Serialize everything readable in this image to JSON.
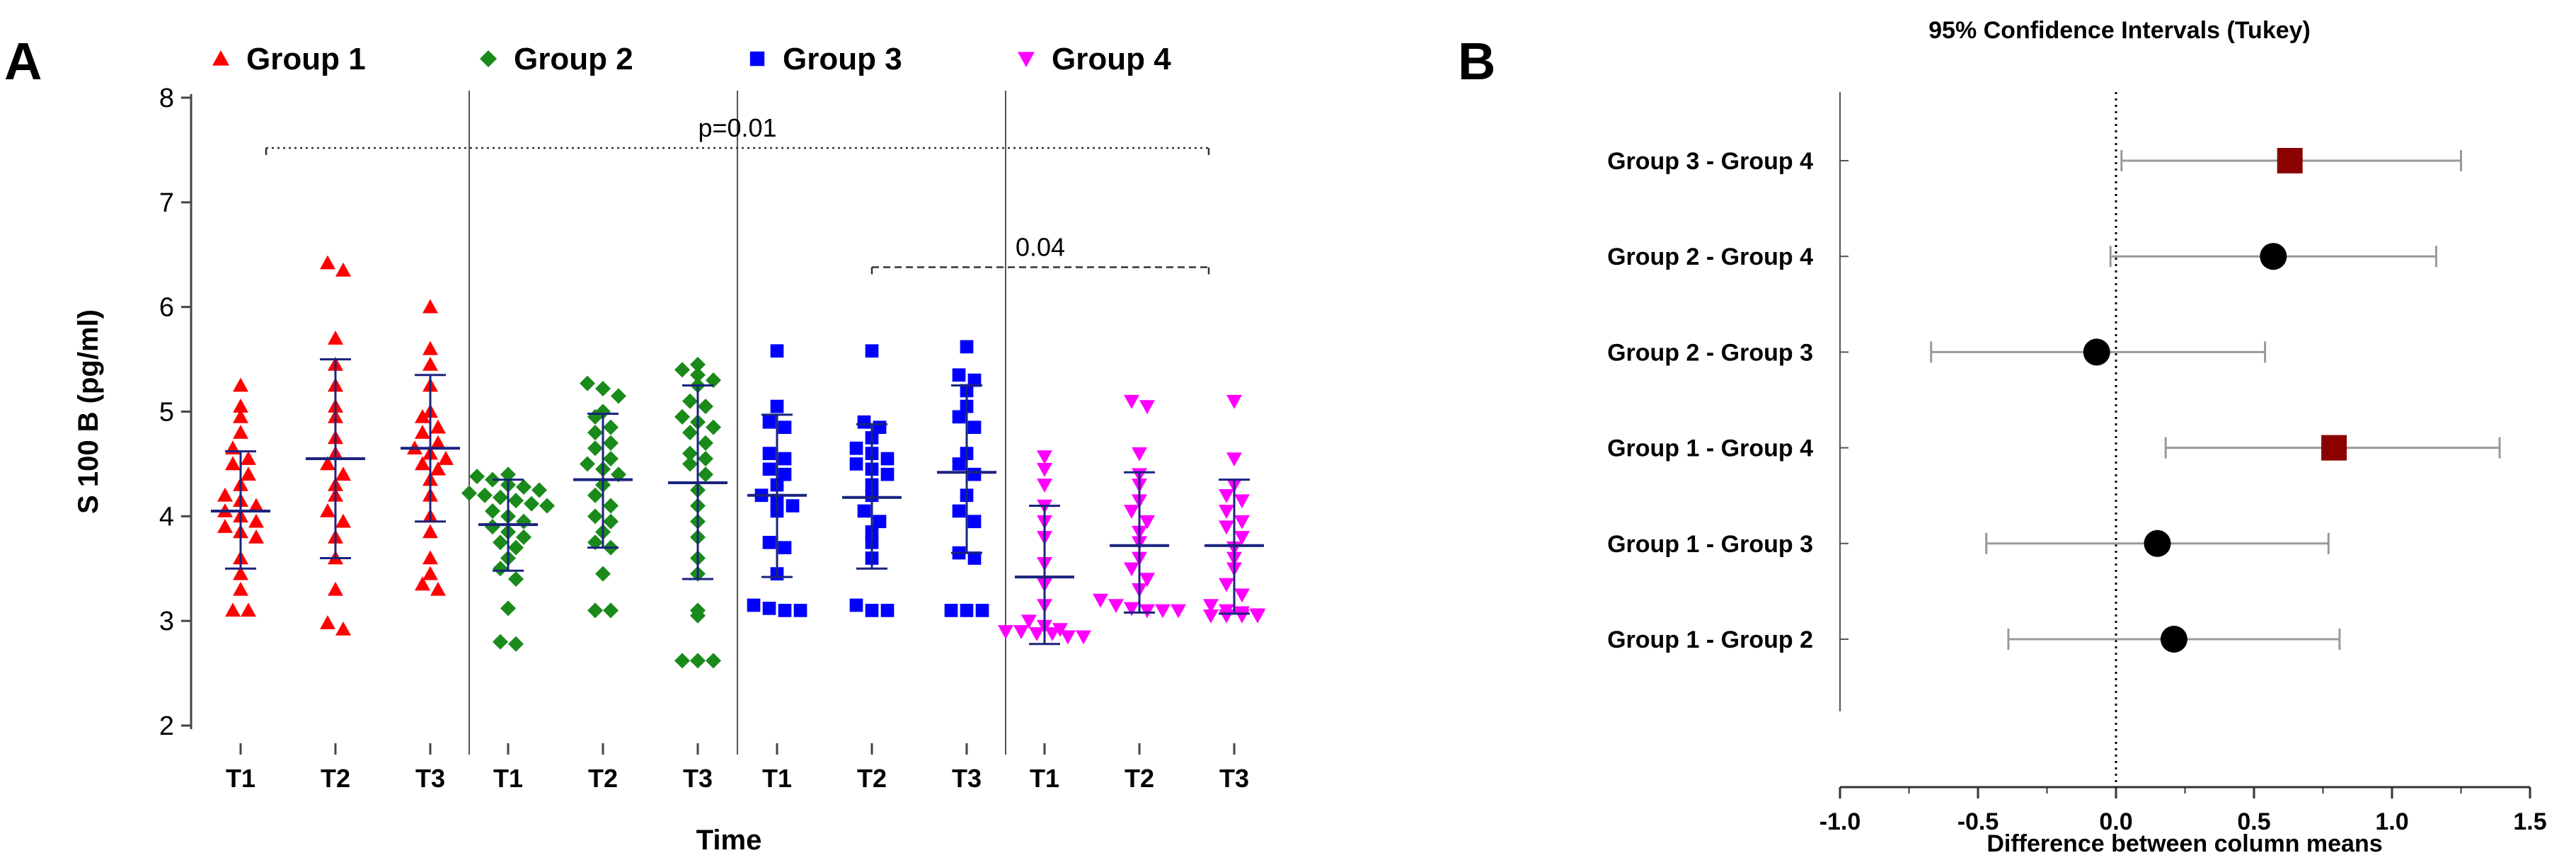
{
  "panel_labels": {
    "a": "A",
    "b": "B"
  },
  "colors": {
    "group1": "#ff0000",
    "group2": "#1a8a1a",
    "group3": "#0000ff",
    "group4": "#ff00ff",
    "errorbar": "#1a237e",
    "ci_highlight": "#8b0000",
    "ci_normal": "#000000",
    "ci_whisker": "#999999"
  },
  "chart_data": [
    {
      "type": "scatter",
      "ylabel": "S 100 B (pg/ml)",
      "xlabel": "Time",
      "ylim": [
        2,
        8
      ],
      "yticks": [
        2,
        3,
        4,
        5,
        6,
        7,
        8
      ],
      "legend_position": "top",
      "groups": [
        {
          "name": "Group 1",
          "marker": "triangle-up",
          "color_key": "group1",
          "timepoints": [
            {
              "label": "T1",
              "mean": 4.05,
              "sd_low": 3.5,
              "sd_high": 4.62,
              "values": [
                5.25,
                5.05,
                4.95,
                4.8,
                4.65,
                4.55,
                4.5,
                4.4,
                4.3,
                4.2,
                4.15,
                4.1,
                4.05,
                4.0,
                3.95,
                3.9,
                3.85,
                3.8,
                3.6,
                3.45,
                3.3,
                3.1,
                3.1
              ]
            },
            {
              "label": "T2",
              "mean": 4.55,
              "sd_low": 3.6,
              "sd_high": 5.5,
              "values": [
                6.42,
                6.35,
                5.7,
                5.45,
                5.25,
                5.05,
                4.95,
                4.75,
                4.6,
                4.5,
                4.4,
                4.3,
                4.2,
                4.05,
                3.95,
                3.8,
                3.6,
                3.3,
                2.98,
                2.92
              ]
            },
            {
              "label": "T3",
              "mean": 4.65,
              "sd_low": 3.95,
              "sd_high": 5.35,
              "values": [
                6.0,
                5.6,
                5.45,
                5.25,
                5.0,
                4.95,
                4.85,
                4.8,
                4.7,
                4.65,
                4.6,
                4.55,
                4.5,
                4.45,
                4.35,
                4.2,
                4.0,
                3.85,
                3.6,
                3.45,
                3.35,
                3.3
              ]
            }
          ]
        },
        {
          "name": "Group 2",
          "marker": "diamond",
          "color_key": "group2",
          "timepoints": [
            {
              "label": "T1",
              "mean": 3.92,
              "sd_low": 3.48,
              "sd_high": 4.35,
              "values": [
                4.4,
                4.38,
                4.35,
                4.3,
                4.28,
                4.25,
                4.22,
                4.2,
                4.18,
                4.15,
                4.12,
                4.1,
                4.05,
                4.0,
                3.95,
                3.9,
                3.85,
                3.8,
                3.75,
                3.7,
                3.6,
                3.5,
                3.4,
                3.12,
                2.8,
                2.78
              ]
            },
            {
              "label": "T2",
              "mean": 4.35,
              "sd_low": 3.7,
              "sd_high": 4.98,
              "values": [
                5.27,
                5.22,
                5.15,
                5.0,
                4.95,
                4.85,
                4.8,
                4.7,
                4.65,
                4.55,
                4.5,
                4.45,
                4.4,
                4.3,
                4.2,
                4.1,
                4.0,
                3.95,
                3.85,
                3.75,
                3.7,
                3.45,
                3.1,
                3.1
              ]
            },
            {
              "label": "T3",
              "mean": 4.32,
              "sd_low": 3.4,
              "sd_high": 5.25,
              "values": [
                5.45,
                5.4,
                5.35,
                5.3,
                5.25,
                5.1,
                5.05,
                4.95,
                4.9,
                4.85,
                4.8,
                4.7,
                4.6,
                4.55,
                4.5,
                4.4,
                4.25,
                4.1,
                3.95,
                3.8,
                3.6,
                3.45,
                3.1,
                3.05,
                2.62,
                2.62,
                2.62
              ]
            }
          ]
        },
        {
          "name": "Group 3",
          "marker": "square",
          "color_key": "group3",
          "timepoints": [
            {
              "label": "T1",
              "mean": 4.2,
              "sd_low": 3.42,
              "sd_high": 4.97,
              "values": [
                5.58,
                5.05,
                4.9,
                4.85,
                4.6,
                4.55,
                4.45,
                4.4,
                4.3,
                4.2,
                4.15,
                4.1,
                4.05,
                3.75,
                3.7,
                3.45,
                3.15,
                3.12,
                3.1,
                3.1
              ]
            },
            {
              "label": "T2",
              "mean": 4.18,
              "sd_low": 3.5,
              "sd_high": 4.88,
              "values": [
                5.58,
                4.9,
                4.85,
                4.75,
                4.65,
                4.6,
                4.55,
                4.5,
                4.45,
                4.4,
                4.3,
                4.2,
                4.05,
                3.95,
                3.85,
                3.75,
                3.6,
                3.15,
                3.1,
                3.1
              ]
            },
            {
              "label": "T3",
              "mean": 4.42,
              "sd_low": 3.65,
              "sd_high": 5.25,
              "values": [
                5.62,
                5.35,
                5.3,
                5.2,
                5.05,
                4.95,
                4.85,
                4.6,
                4.5,
                4.4,
                4.2,
                4.05,
                3.95,
                3.65,
                3.6,
                3.1,
                3.1,
                3.1
              ]
            }
          ]
        },
        {
          "name": "Group 4",
          "marker": "triangle-down",
          "color_key": "group4",
          "timepoints": [
            {
              "label": "T1",
              "mean": 3.42,
              "sd_low": 2.78,
              "sd_high": 4.1,
              "values": [
                4.57,
                4.45,
                4.3,
                4.1,
                3.95,
                3.8,
                3.55,
                3.35,
                3.15,
                3.0,
                2.95,
                2.92,
                2.9,
                2.9,
                2.88,
                2.88,
                2.85,
                2.85
              ]
            },
            {
              "label": "T2",
              "mean": 3.72,
              "sd_low": 3.08,
              "sd_high": 4.42,
              "values": [
                5.1,
                5.05,
                4.6,
                4.4,
                4.3,
                4.15,
                4.05,
                3.95,
                3.85,
                3.75,
                3.6,
                3.5,
                3.4,
                3.3,
                3.2,
                3.15,
                3.12,
                3.1,
                3.1,
                3.1
              ]
            },
            {
              "label": "T3",
              "mean": 3.72,
              "sd_low": 3.07,
              "sd_high": 4.35,
              "values": [
                5.1,
                4.55,
                4.3,
                4.2,
                4.15,
                4.05,
                3.95,
                3.9,
                3.8,
                3.7,
                3.6,
                3.5,
                3.35,
                3.25,
                3.15,
                3.1,
                3.08,
                3.06,
                3.05,
                3.05,
                3.05,
                3.05
              ]
            }
          ]
        }
      ],
      "annotations": [
        {
          "text": "p=0.01",
          "y": 7.52,
          "from_group": 0,
          "to_group": 3,
          "style": "dotted"
        },
        {
          "text": "0.04",
          "y": 6.38,
          "from_group": 2,
          "to_group": 3,
          "style": "dashed"
        }
      ]
    },
    {
      "type": "forest",
      "title": "95% Confidence Intervals (Tukey)",
      "xlabel": "Difference between column means",
      "xlim": [
        -1.0,
        1.5
      ],
      "xticks": [
        "-1.0",
        "-0.5",
        "0.0",
        "0.5",
        "1.0",
        "1.5"
      ],
      "reference_line": 0,
      "comparisons": [
        {
          "label": "Group 3 - Group 4",
          "mean": 0.63,
          "low": 0.02,
          "high": 1.25,
          "significant": true
        },
        {
          "label": "Group 2 - Group 4",
          "mean": 0.57,
          "low": -0.02,
          "high": 1.16,
          "significant": false
        },
        {
          "label": "Group 2 - Group 3",
          "mean": -0.07,
          "low": -0.67,
          "high": 0.54,
          "significant": false
        },
        {
          "label": "Group 1 - Group 4",
          "mean": 0.79,
          "low": 0.18,
          "high": 1.39,
          "significant": true
        },
        {
          "label": "Group 1 - Group 3",
          "mean": 0.15,
          "low": -0.47,
          "high": 0.77,
          "significant": false
        },
        {
          "label": "Group 1 - Group 2",
          "mean": 0.21,
          "low": -0.39,
          "high": 0.81,
          "significant": false
        }
      ]
    }
  ]
}
